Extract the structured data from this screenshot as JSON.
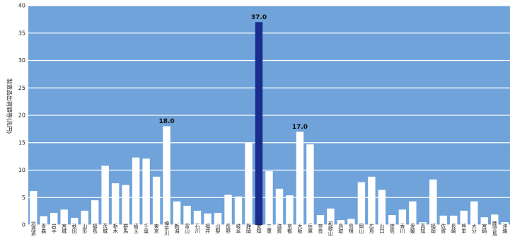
{
  "chart_data": {
    "type": "bar",
    "y_label": "製造品出荷額等(兆円)",
    "categories": [
      "北海道",
      "青森",
      "岩手",
      "宮城",
      "秋田",
      "山形",
      "福島",
      "茨城",
      "栃木",
      "群馬",
      "埼玉",
      "千葉",
      "東京",
      "神奈川",
      "新潟",
      "富山",
      "石川",
      "福井",
      "山梨",
      "長野",
      "岐阜",
      "静岡",
      "愛知",
      "三重",
      "滋賀",
      "京都",
      "大阪",
      "兵庫",
      "奈良",
      "和歌山",
      "鳥取",
      "島根",
      "岡山",
      "広島",
      "山口",
      "徳島",
      "香川",
      "愛媛",
      "高知",
      "福岡",
      "佐賀",
      "長崎",
      "熊本",
      "大分",
      "宮崎",
      "鹿児島",
      "沖縄"
    ],
    "values": [
      6.2,
      1.6,
      2.2,
      2.8,
      1.3,
      2.6,
      4.5,
      10.8,
      7.6,
      7.3,
      12.3,
      12.1,
      8.8,
      18.0,
      4.3,
      3.5,
      2.6,
      2.1,
      2.2,
      5.5,
      5.2,
      15.0,
      37.0,
      9.8,
      6.6,
      5.4,
      17.0,
      14.7,
      1.8,
      3.0,
      0.9,
      1.1,
      7.8,
      8.8,
      6.4,
      1.8,
      2.8,
      4.3,
      0.5,
      8.3,
      1.7,
      1.7,
      2.6,
      4.3,
      1.4,
      1.9,
      0.5
    ],
    "value_labels": [
      null,
      null,
      null,
      null,
      null,
      null,
      null,
      null,
      null,
      null,
      null,
      null,
      null,
      "18.0",
      null,
      null,
      null,
      null,
      null,
      null,
      null,
      null,
      "37.0",
      null,
      null,
      null,
      "17.0",
      null,
      null,
      null,
      null,
      null,
      null,
      null,
      null,
      null,
      null,
      null,
      null,
      null,
      null,
      null,
      null,
      null,
      null,
      null,
      null
    ],
    "colors": [
      "#ffffff",
      "#ffffff",
      "#ffffff",
      "#ffffff",
      "#ffffff",
      "#ffffff",
      "#ffffff",
      "#ffffff",
      "#ffffff",
      "#ffffff",
      "#ffffff",
      "#ffffff",
      "#ffffff",
      "#ffffff",
      "#ffffff",
      "#ffffff",
      "#ffffff",
      "#ffffff",
      "#ffffff",
      "#ffffff",
      "#ffffff",
      "#ffffff",
      "#1b2d8c",
      "#ffffff",
      "#ffffff",
      "#ffffff",
      "#ffffff",
      "#ffffff",
      "#ffffff",
      "#ffffff",
      "#ffffff",
      "#ffffff",
      "#ffffff",
      "#ffffff",
      "#ffffff",
      "#ffffff",
      "#ffffff",
      "#ffffff",
      "#ffffff",
      "#ffffff",
      "#ffffff",
      "#ffffff",
      "#ffffff",
      "#ffffff",
      "#ffffff",
      "#ffffff",
      "#ffffff"
    ],
    "background": "#6fa3da",
    "ylim": [
      0,
      40
    ],
    "yticks": [
      0,
      5,
      10,
      15,
      20,
      25,
      30,
      35,
      40
    ],
    "grid": true
  }
}
